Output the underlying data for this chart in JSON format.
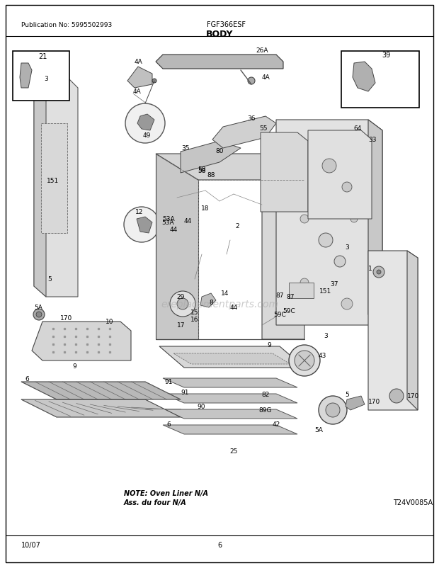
{
  "title": "BODY",
  "model": "FGF366ESF",
  "publication": "Publication No: 5995502993",
  "date": "10/07",
  "page": "6",
  "diagram_code": "T24V0085A",
  "note_line1": "NOTE: Oven Liner N/A",
  "note_line2": "Ass. du four N/A",
  "watermark": "ereplacementparts.com",
  "bg_color": "#ffffff",
  "border_color": "#000000",
  "text_color": "#000000",
  "gray_color": "#888888",
  "light_gray": "#cccccc",
  "mid_gray": "#999999"
}
